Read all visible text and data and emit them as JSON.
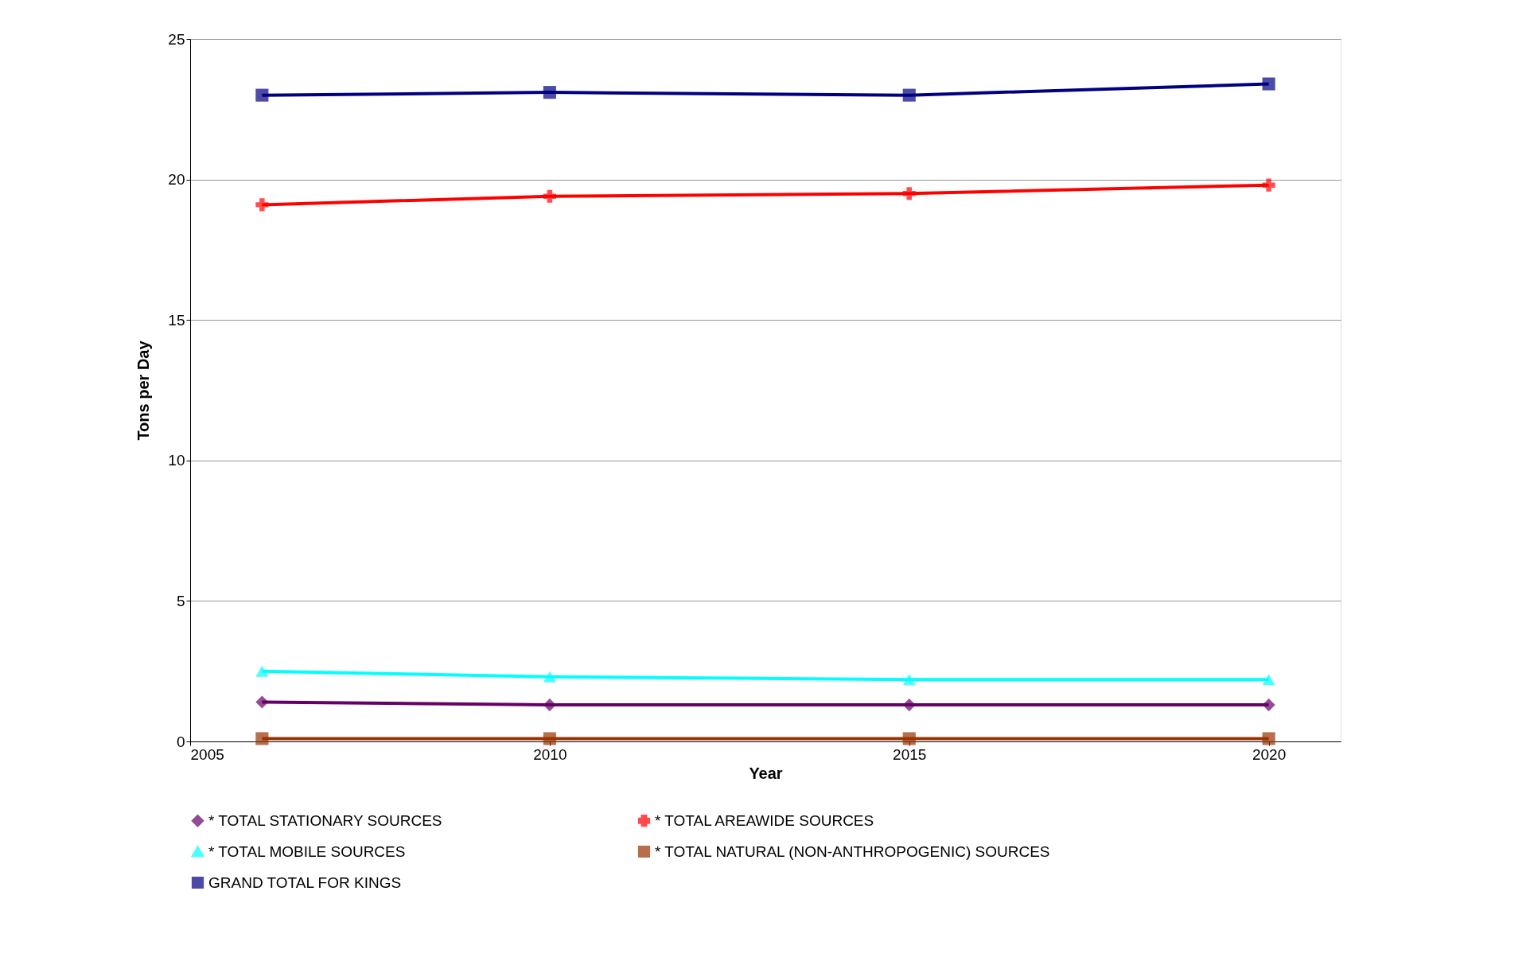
{
  "chart_data": {
    "type": "line",
    "xlabel": "Year",
    "ylabel": "Tons per Day",
    "x": [
      2006,
      2010,
      2015,
      2020
    ],
    "xlim": [
      2005,
      2021
    ],
    "xticks": [
      2005,
      2010,
      2015,
      2020
    ],
    "ylim": [
      0,
      25
    ],
    "yticks": [
      0,
      5,
      10,
      15,
      20,
      25
    ],
    "grid": "y",
    "legend": "bottom",
    "series": [
      {
        "name": "* TOTAL STATIONARY SOURCES",
        "color": "#660066",
        "marker": "diamond",
        "values": [
          1.4,
          1.3,
          1.3,
          1.3
        ]
      },
      {
        "name": "* TOTAL AREAWIDE SOURCES",
        "color": "#ff0000",
        "marker": "cross",
        "values": [
          19.1,
          19.4,
          19.5,
          19.8
        ]
      },
      {
        "name": "* TOTAL MOBILE SOURCES",
        "color": "#00ffff",
        "marker": "triangle",
        "values": [
          2.5,
          2.3,
          2.2,
          2.2
        ]
      },
      {
        "name": "* TOTAL NATURAL (NON-ANTHROPOGENIC) SOURCES",
        "color": "#993300",
        "marker": "square",
        "values": [
          0.1,
          0.1,
          0.1,
          0.1
        ]
      },
      {
        "name": "GRAND TOTAL FOR KINGS",
        "color": "#000080",
        "marker": "square",
        "values": [
          23.0,
          23.1,
          23.0,
          23.4
        ]
      }
    ]
  }
}
